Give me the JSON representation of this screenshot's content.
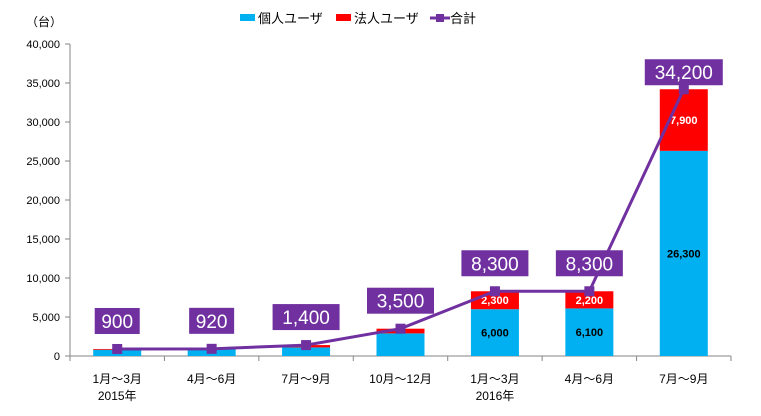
{
  "chart_data": {
    "type": "bar",
    "stacked": true,
    "unit_label": "（台）",
    "categories": [
      "1月～3月",
      "4月～6月",
      "7月～9月",
      "10月～12月",
      "1月～3月",
      "4月～6月",
      "7月～9月"
    ],
    "year_labels": [
      {
        "index": 0,
        "label": "2015年"
      },
      {
        "index": 4,
        "label": "2016年"
      }
    ],
    "series": [
      {
        "name": "個人ユーザ",
        "type": "bar",
        "color": "#00b0f0",
        "values": [
          800,
          850,
          1100,
          2900,
          6000,
          6100,
          26300
        ],
        "labels": [
          null,
          null,
          null,
          null,
          "6,000",
          "6,100",
          "26,300"
        ]
      },
      {
        "name": "法人ユーザ",
        "type": "bar",
        "color": "#ff0000",
        "values": [
          100,
          70,
          300,
          600,
          2300,
          2200,
          7900
        ],
        "labels": [
          null,
          null,
          null,
          null,
          "2,300",
          "2,200",
          "7,900"
        ]
      },
      {
        "name": "合計",
        "type": "line",
        "color": "#7030a0",
        "values": [
          900,
          920,
          1400,
          3500,
          8300,
          8300,
          34200
        ],
        "labels": [
          "900",
          "920",
          "1,400",
          "3,500",
          "8,300",
          "8,300",
          "34,200"
        ]
      }
    ],
    "ylim": [
      0,
      40000
    ],
    "yticks": [
      0,
      5000,
      10000,
      15000,
      20000,
      25000,
      30000,
      35000,
      40000
    ],
    "ytick_labels": [
      "0",
      "5,000",
      "10,000",
      "15,000",
      "20,000",
      "25,000",
      "30,000",
      "35,000",
      "40,000"
    ],
    "legend_position": "top-center",
    "grid": false
  }
}
